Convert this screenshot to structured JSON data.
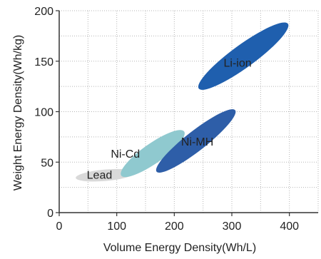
{
  "chart_data": {
    "type": "scatter",
    "xlabel": "Volume Energy Density(Wh/L)",
    "ylabel": "Weight Energy Density(Wh/kg)",
    "xlim": [
      0,
      450
    ],
    "ylim": [
      0,
      200
    ],
    "x_ticks": [
      0,
      100,
      200,
      300,
      400
    ],
    "y_ticks": [
      0,
      50,
      100,
      150,
      200
    ],
    "grid": true,
    "series": [
      {
        "name": "Lead",
        "color": "#d9d9d9",
        "label_at": [
          70,
          37
        ],
        "region": {
          "x_range": [
            30,
            130
          ],
          "y_range": [
            30,
            44
          ],
          "slope_deg": 5
        }
      },
      {
        "name": "Ni-Cd",
        "color": "#8fc9cf",
        "label_at": [
          115,
          58
        ],
        "region": {
          "x_range": [
            110,
            215
          ],
          "y_range": [
            35,
            82
          ],
          "slope_deg": 35
        }
      },
      {
        "name": "Ni-MH",
        "color": "#2e5ea8",
        "label_at": [
          240,
          70
        ],
        "region": {
          "x_range": [
            170,
            305
          ],
          "y_range": [
            40,
            102
          ],
          "slope_deg": 38
        }
      },
      {
        "name": "Li-ion",
        "color": "#1f5fae",
        "label_at": [
          310,
          148
        ],
        "region": {
          "x_range": [
            240,
            400
          ],
          "y_range": [
            125,
            185
          ],
          "slope_deg": 36
        }
      }
    ]
  }
}
